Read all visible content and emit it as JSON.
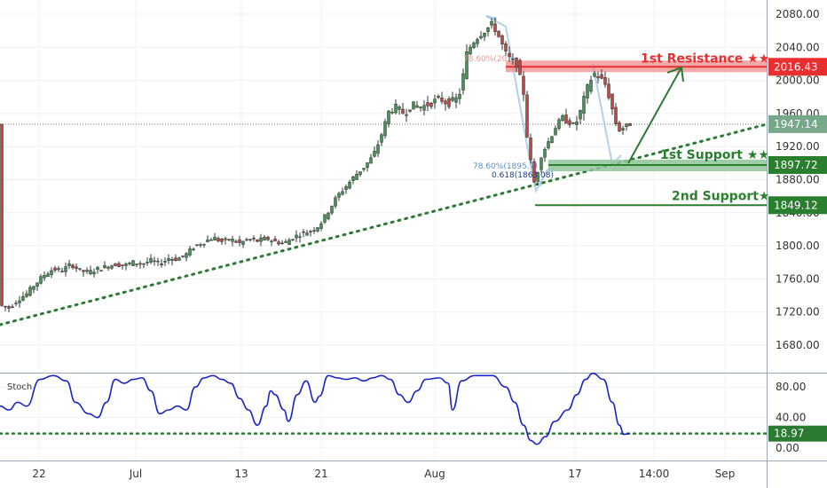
{
  "chart_data": [
    {
      "type": "candlestick",
      "ylim": [
        1640,
        2100
      ],
      "ytick_labels": [
        "2080.00",
        "2040.00",
        "2000.00",
        "1960.00",
        "1920.00",
        "1880.00",
        "1840.00",
        "1800.00",
        "1760.00",
        "1720.00",
        "1680.00"
      ],
      "yticks": [
        2080,
        2040,
        2000,
        1960,
        1920,
        1880,
        1840,
        1800,
        1760,
        1720,
        1680
      ],
      "xtick_labels": [
        "22",
        "Jul",
        "13",
        "21",
        "Aug",
        "17",
        "14:00",
        "Sep"
      ],
      "current_price": "1947.14",
      "levels": [
        {
          "label": "1st Resistance ★★",
          "price": "2016.43",
          "value": 2016.43,
          "color": "#e82e2e",
          "kind": "resistance"
        },
        {
          "label": "1st Support ★★",
          "price": "1897.72",
          "value": 1897.72,
          "color": "#2a7f2e",
          "kind": "support1"
        },
        {
          "label": "2nd Support★",
          "price": "1849.12",
          "value": 1849.12,
          "color": "#2a7f2e",
          "kind": "support2"
        }
      ],
      "fib_labels": [
        "78.60%(1895.7)",
        "0.618(1863.08)",
        "78.60%(20"
      ],
      "waypoints": [
        [
          0,
          1728
        ],
        [
          10,
          1725
        ],
        [
          20,
          1735
        ],
        [
          30,
          1742
        ],
        [
          38,
          1752
        ],
        [
          50,
          1765
        ],
        [
          60,
          1772
        ],
        [
          70,
          1770
        ],
        [
          80,
          1778
        ],
        [
          90,
          1770
        ],
        [
          100,
          1768
        ],
        [
          110,
          1772
        ],
        [
          120,
          1775
        ],
        [
          130,
          1778
        ],
        [
          140,
          1776
        ],
        [
          150,
          1780
        ],
        [
          160,
          1778
        ],
        [
          170,
          1782
        ],
        [
          180,
          1778
        ],
        [
          190,
          1785
        ],
        [
          200,
          1784
        ],
        [
          210,
          1790
        ],
        [
          220,
          1800
        ],
        [
          230,
          1805
        ],
        [
          240,
          1810
        ],
        [
          250,
          1805
        ],
        [
          260,
          1808
        ],
        [
          270,
          1803
        ],
        [
          280,
          1808
        ],
        [
          290,
          1806
        ],
        [
          300,
          1809
        ],
        [
          310,
          1805
        ],
        [
          320,
          1803
        ],
        [
          330,
          1810
        ],
        [
          340,
          1815
        ],
        [
          350,
          1818
        ],
        [
          360,
          1825
        ],
        [
          370,
          1842
        ],
        [
          380,
          1860
        ],
        [
          390,
          1872
        ],
        [
          400,
          1885
        ],
        [
          410,
          1895
        ],
        [
          420,
          1908
        ],
        [
          425,
          1920
        ],
        [
          430,
          1935
        ],
        [
          438,
          1962
        ],
        [
          445,
          1968
        ],
        [
          455,
          1960
        ],
        [
          465,
          1970
        ],
        [
          475,
          1968
        ],
        [
          485,
          1972
        ],
        [
          495,
          1978
        ],
        [
          505,
          1972
        ],
        [
          515,
          1978
        ],
        [
          520,
          1990
        ],
        [
          525,
          2030
        ],
        [
          532,
          2045
        ],
        [
          540,
          2055
        ],
        [
          548,
          2062
        ],
        [
          555,
          2068
        ],
        [
          560,
          2058
        ],
        [
          565,
          2045
        ],
        [
          570,
          2032
        ],
        [
          575,
          2025
        ],
        [
          582,
          2020
        ],
        [
          590,
          1985
        ],
        [
          595,
          1920
        ],
        [
          600,
          1890
        ],
        [
          603,
          1870
        ],
        [
          608,
          1905
        ],
        [
          615,
          1920
        ],
        [
          620,
          1930
        ],
        [
          628,
          1948
        ],
        [
          635,
          1955
        ],
        [
          640,
          1950
        ],
        [
          648,
          1945
        ],
        [
          655,
          1965
        ],
        [
          660,
          1985
        ],
        [
          665,
          2000
        ],
        [
          670,
          2008
        ],
        [
          676,
          2003
        ],
        [
          682,
          1995
        ],
        [
          688,
          1975
        ],
        [
          693,
          1950
        ],
        [
          698,
          1940
        ],
        [
          704,
          1944
        ],
        [
          710,
          1947
        ]
      ]
    },
    {
      "type": "line",
      "title": "Stoch",
      "ylim": [
        0,
        100
      ],
      "ytick_labels": [
        "80.00",
        "40.00",
        "0.00"
      ],
      "yticks": [
        80,
        40,
        0
      ],
      "current_value": "18.97",
      "series": [
        {
          "values": [
            [
              0,
              55
            ],
            [
              10,
              50
            ],
            [
              20,
              60
            ],
            [
              30,
              55
            ],
            [
              45,
              90
            ],
            [
              60,
              95
            ],
            [
              75,
              88
            ],
            [
              85,
              60
            ],
            [
              100,
              45
            ],
            [
              110,
              40
            ],
            [
              120,
              60
            ],
            [
              130,
              90
            ],
            [
              140,
              85
            ],
            [
              150,
              90
            ],
            [
              160,
              92
            ],
            [
              170,
              75
            ],
            [
              180,
              45
            ],
            [
              190,
              50
            ],
            [
              200,
              55
            ],
            [
              210,
              50
            ],
            [
              220,
              80
            ],
            [
              230,
              92
            ],
            [
              240,
              95
            ],
            [
              250,
              90
            ],
            [
              260,
              85
            ],
            [
              270,
              65
            ],
            [
              280,
              50
            ],
            [
              290,
              30
            ],
            [
              300,
              55
            ],
            [
              305,
              75
            ],
            [
              310,
              70
            ],
            [
              320,
              50
            ],
            [
              325,
              35
            ],
            [
              335,
              70
            ],
            [
              345,
              88
            ],
            [
              355,
              60
            ],
            [
              360,
              68
            ],
            [
              370,
              95
            ],
            [
              380,
              92
            ],
            [
              390,
              90
            ],
            [
              400,
              92
            ],
            [
              410,
              88
            ],
            [
              420,
              92
            ],
            [
              430,
              95
            ],
            [
              440,
              90
            ],
            [
              450,
              70
            ],
            [
              460,
              60
            ],
            [
              470,
              75
            ],
            [
              480,
              90
            ],
            [
              495,
              92
            ],
            [
              505,
              85
            ],
            [
              510,
              50
            ],
            [
              520,
              88
            ],
            [
              535,
              95
            ],
            [
              555,
              95
            ],
            [
              570,
              80
            ],
            [
              580,
              60
            ],
            [
              590,
              30
            ],
            [
              598,
              10
            ],
            [
              605,
              5
            ],
            [
              615,
              15
            ],
            [
              625,
              35
            ],
            [
              640,
              50
            ],
            [
              650,
              70
            ],
            [
              660,
              90
            ],
            [
              668,
              98
            ],
            [
              680,
              90
            ],
            [
              690,
              60
            ],
            [
              698,
              30
            ],
            [
              703,
              18
            ],
            [
              710,
              19
            ]
          ]
        }
      ]
    }
  ]
}
